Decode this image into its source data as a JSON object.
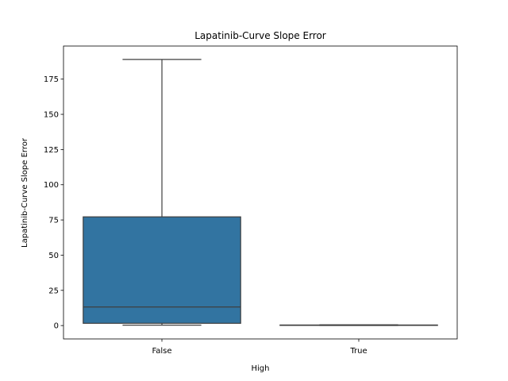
{
  "chart_data": {
    "type": "box",
    "title": "Lapatinib-Curve Slope Error",
    "xlabel": "High",
    "ylabel": "Lapatinib-Curve Slope Error",
    "ylim": [
      -9.5,
      198.5
    ],
    "yticks": [
      0,
      25,
      50,
      75,
      100,
      125,
      150,
      175
    ],
    "categories": [
      "False",
      "True"
    ],
    "boxes": [
      {
        "category": "False",
        "whisker_low": 0.3,
        "q1": 1.6,
        "median": 13.2,
        "q3": 77.2,
        "whisker_high": 189.0
      },
      {
        "category": "True",
        "whisker_low": 0.1,
        "q1": 0.2,
        "median": 0.3,
        "q3": 0.4,
        "whisker_high": 0.5
      }
    ],
    "box_color": "#3274a1",
    "line_color": "#3f3f3f"
  }
}
